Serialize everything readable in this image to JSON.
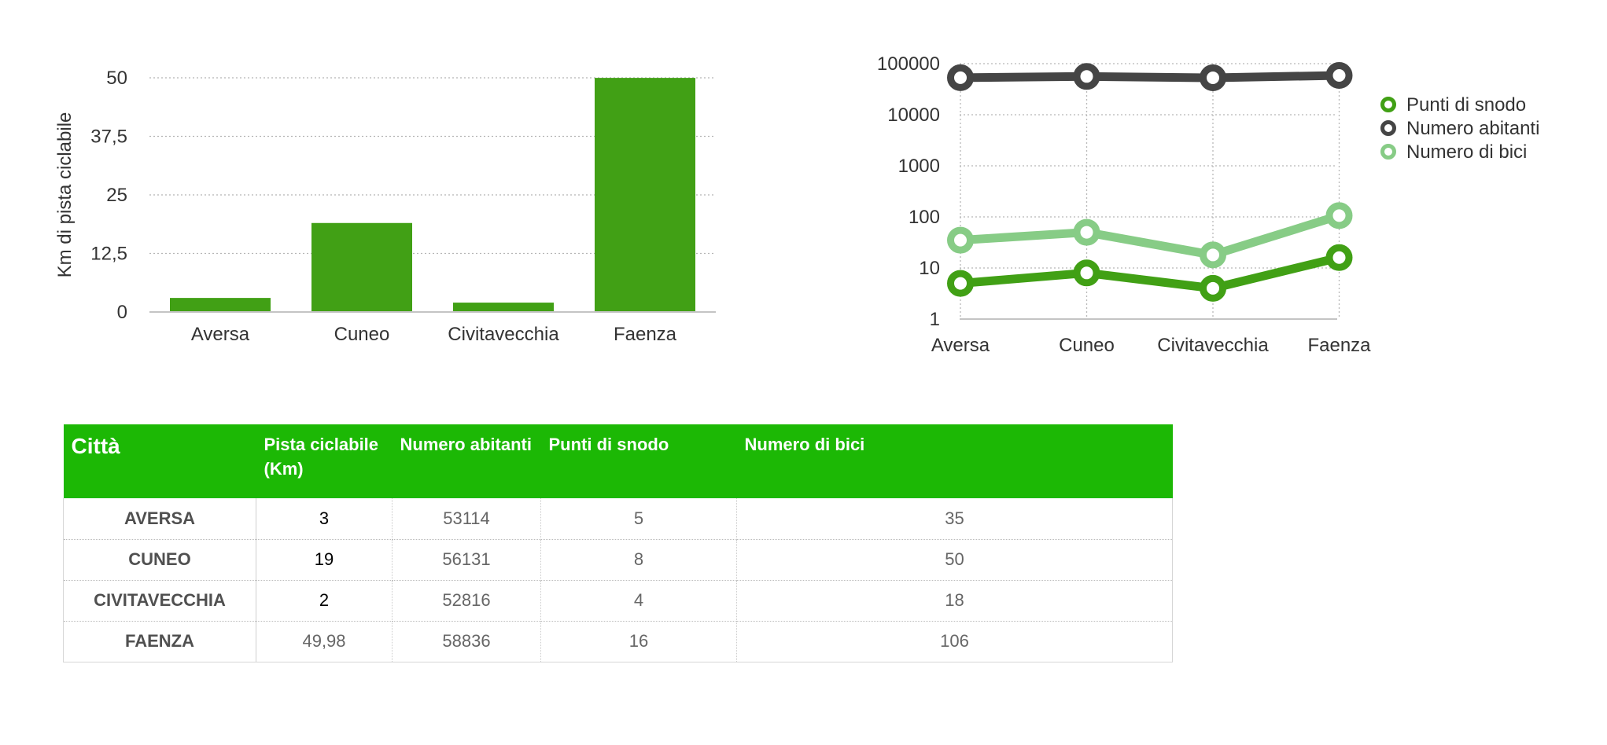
{
  "chart_data": [
    {
      "type": "bar",
      "categories": [
        "Aversa",
        "Cuneo",
        "Civitavecchia",
        "Faenza"
      ],
      "values": [
        3,
        19,
        2,
        49.98
      ],
      "ylabel": "Km di pista ciclabile",
      "ylim": [
        0,
        50
      ],
      "yticks": [
        "0",
        "12,5",
        "25",
        "37,5",
        "50"
      ],
      "ytick_values": [
        0,
        12.5,
        25,
        37.5,
        50
      ],
      "grid": true,
      "bar_color": "#41a015"
    },
    {
      "type": "line",
      "categories": [
        "Aversa",
        "Cuneo",
        "Civitavecchia",
        "Faenza"
      ],
      "yscale": "log",
      "ylim": [
        1,
        100000
      ],
      "yticks": [
        "1",
        "10",
        "100",
        "1000",
        "10000",
        "100000"
      ],
      "ytick_values": [
        1,
        10,
        100,
        1000,
        10000,
        100000
      ],
      "grid": true,
      "legend_position": "right",
      "series": [
        {
          "name": "Punti di snodo",
          "values": [
            5,
            8,
            4,
            16
          ],
          "color": "#41a015"
        },
        {
          "name": "Numero abitanti",
          "values": [
            53114,
            56131,
            52816,
            58836
          ],
          "color": "#454545"
        },
        {
          "name": "Numero di bici",
          "values": [
            35,
            50,
            18,
            106
          ],
          "color": "#87cc86"
        }
      ]
    }
  ],
  "table": {
    "header_color": "#1cb805",
    "headers": [
      "Città",
      "Pista ciclabile (Km)",
      "Numero abitanti",
      "Punti di snodo",
      "Numero di bici"
    ],
    "rows": [
      [
        "AVERSA",
        "3",
        "53114",
        "5",
        "35"
      ],
      [
        "CUNEO",
        "19",
        "56131",
        "8",
        "50"
      ],
      [
        "CIVITAVECCHIA",
        "2",
        "52816",
        "4",
        "18"
      ],
      [
        "FAENZA",
        "49,98",
        "58836",
        "16",
        "106"
      ]
    ]
  }
}
